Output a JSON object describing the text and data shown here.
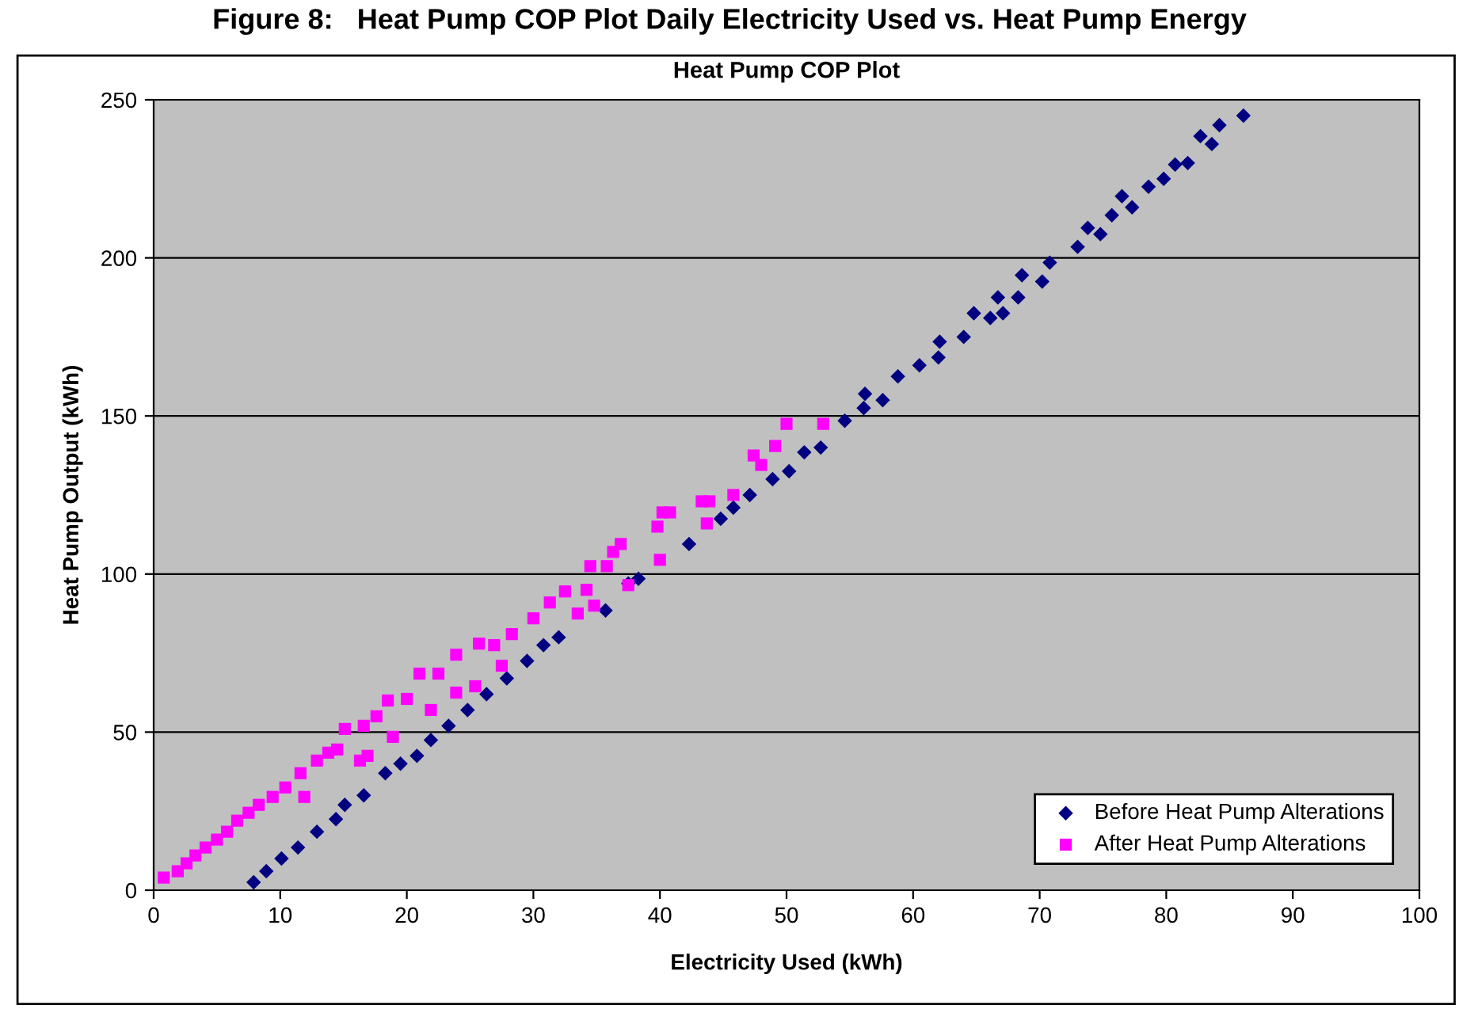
{
  "chart_data": {
    "type": "scatter",
    "title": "Heat Pump COP Plot",
    "xlabel": "Electricity Used (kWh)",
    "ylabel": "Heat Pump Output (kWh)",
    "annotations": [
      "Figure 8:   Heat Pump COP Plot Daily Electricity Used vs. Heat Pump Energy"
    ],
    "xlim": [
      0,
      100
    ],
    "ylim": [
      0,
      250
    ],
    "xticks": [
      0,
      10,
      20,
      30,
      40,
      50,
      60,
      70,
      80,
      90,
      100
    ],
    "yticks": [
      0,
      50,
      100,
      150,
      200,
      250
    ],
    "grid": "y",
    "legend": "bottom right",
    "series": [
      {
        "name": "Before Heat Pump Alterations",
        "color": "#000080",
        "marker": "diamond",
        "x": [
          7.9,
          8.9,
          10.1,
          11.4,
          12.9,
          14.4,
          15.1,
          16.6,
          18.3,
          19.5,
          20.8,
          21.9,
          23.3,
          24.8,
          26.3,
          27.9,
          29.5,
          30.8,
          32,
          35.7,
          37.5,
          38.3,
          42.3,
          44.8,
          45.8,
          47.1,
          48.9,
          50.2,
          51.4,
          52.7,
          54.6,
          56.1,
          56.2,
          57.6,
          58.8,
          60.5,
          62,
          62.1,
          64,
          64.8,
          66.1,
          66.7,
          67.1,
          68.3,
          68.6,
          70.2,
          70.8,
          73,
          73.8,
          74.8,
          75.7,
          76.5,
          77.3,
          78.6,
          79.8,
          80.7,
          81.7,
          82.7,
          83.6,
          84.2,
          86.1
        ],
        "values": [
          2.5,
          6,
          10,
          13.5,
          18.5,
          22.5,
          27,
          30,
          37,
          40,
          42.5,
          47.5,
          52,
          57,
          62,
          67,
          72.5,
          77.5,
          80,
          88.5,
          97,
          98.5,
          109.5,
          117.5,
          121,
          125,
          130,
          132.5,
          138.5,
          140,
          148.5,
          152.5,
          157,
          155,
          162.5,
          166,
          168.5,
          173.5,
          175,
          182.5,
          181,
          187.5,
          182.5,
          187.5,
          194.5,
          192.5,
          198.5,
          203.5,
          209.5,
          207.5,
          213.5,
          219.5,
          216,
          222.5,
          225,
          229.5,
          230,
          238.5,
          236,
          242,
          245
        ]
      },
      {
        "name": "After Heat Pump Alterations",
        "color": "#ff00ff",
        "marker": "square",
        "x": [
          0.8,
          1.9,
          2.6,
          3.3,
          4.1,
          5,
          5.8,
          6.6,
          7.5,
          8.3,
          9.4,
          10.4,
          11.6,
          11.9,
          12.9,
          13.8,
          14.5,
          15.1,
          16.3,
          16.6,
          16.9,
          17.6,
          18.9,
          18.5,
          20,
          21.9,
          21,
          22.5,
          23.9,
          23.9,
          25.4,
          25.7,
          26.9,
          27.5,
          28.3,
          30,
          31.3,
          32.5,
          33.5,
          34.2,
          34.8,
          34.5,
          35.8,
          36.3,
          36.9,
          37.5,
          39.8,
          40.2,
          40.8,
          43.7,
          43.3,
          43.9,
          45.8,
          47.4,
          48,
          49.1,
          50,
          52.9,
          40
        ],
        "values": [
          4,
          6,
          8.5,
          11,
          13.5,
          16,
          18.5,
          22,
          24.5,
          27,
          29.5,
          32.5,
          37,
          29.5,
          41,
          43.5,
          44.5,
          51,
          41,
          52,
          42.5,
          55,
          48.5,
          60,
          60.5,
          57,
          68.5,
          68.5,
          62.5,
          74.5,
          64.5,
          78,
          77.5,
          71,
          81,
          86,
          91,
          94.5,
          87.5,
          95,
          90,
          102.5,
          102.5,
          107,
          109.5,
          96.5,
          115,
          119.5,
          119.5,
          116,
          123,
          123,
          125,
          137.5,
          134.5,
          140.5,
          147.5,
          147.5,
          104.5
        ]
      }
    ]
  }
}
